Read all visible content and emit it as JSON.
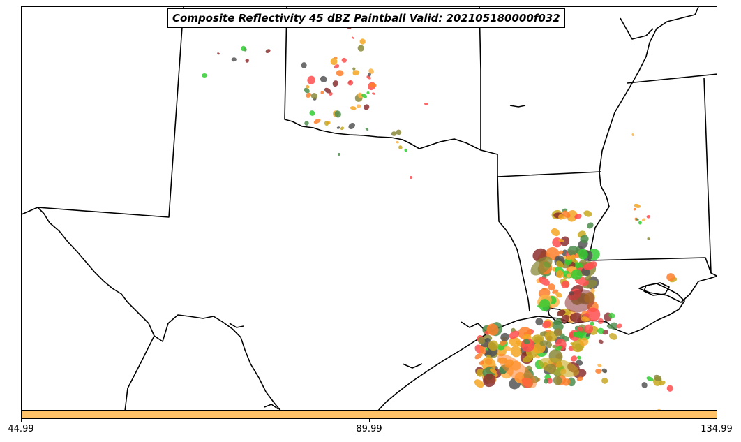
{
  "title": "Composite Reflectivity 45 dBZ Paintball Valid: 202105180000f032",
  "colorbar": {
    "color": "#ffc266",
    "ticks": [
      "44.99",
      "89.99",
      "134.99"
    ]
  },
  "paintball_colors": [
    "#ff4d4d",
    "#33cc33",
    "#f5a623",
    "#8b2f2f",
    "#8a8a3a",
    "#555555",
    "#ff7f2a",
    "#c8a81e",
    "#4c8c4c",
    "#ffb347"
  ],
  "map_style": {
    "border_color": "#000000",
    "background": "#ffffff"
  }
}
